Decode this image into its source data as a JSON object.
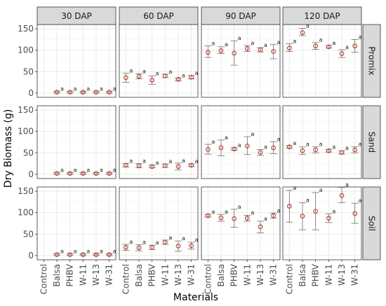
{
  "chart_data": {
    "type": "scatter",
    "xlabel": "Materials",
    "ylabel": "Dry Biomass (g)",
    "categories": [
      "Control",
      "Balsa",
      "PHBV",
      "W-11",
      "W-13",
      "W-31"
    ],
    "columns": [
      "30 DAP",
      "60 DAP",
      "90 DAP",
      "120 DAP"
    ],
    "rows": [
      "Promix",
      "Sand",
      "Soil"
    ],
    "ylim": [
      -10,
      160
    ],
    "yticks": [
      0,
      50,
      100,
      150
    ],
    "grid": true,
    "point_color": "#c0392b",
    "significance_label": "a",
    "panels": [
      {
        "row": "Promix",
        "col": "30 DAP",
        "points": [
          {
            "x": "Balsa",
            "y": 2,
            "lo": 0,
            "hi": 4
          },
          {
            "x": "PHBV",
            "y": 2,
            "lo": 0,
            "hi": 4
          },
          {
            "x": "W-11",
            "y": 2,
            "lo": 0,
            "hi": 4
          },
          {
            "x": "W-13",
            "y": 2,
            "lo": 0,
            "hi": 4
          },
          {
            "x": "W-31",
            "y": 2,
            "lo": 0,
            "hi": 4
          }
        ]
      },
      {
        "row": "Promix",
        "col": "60 DAP",
        "points": [
          {
            "x": "Control",
            "y": 36,
            "lo": 25,
            "hi": 46
          },
          {
            "x": "Balsa",
            "y": 39,
            "lo": 33,
            "hi": 45
          },
          {
            "x": "PHBV",
            "y": 30,
            "lo": 20,
            "hi": 40
          },
          {
            "x": "W-11",
            "y": 40,
            "lo": 36,
            "hi": 44
          },
          {
            "x": "W-13",
            "y": 32,
            "lo": 29,
            "hi": 35
          },
          {
            "x": "W-31",
            "y": 37,
            "lo": 33,
            "hi": 41
          }
        ]
      },
      {
        "row": "Promix",
        "col": "90 DAP",
        "points": [
          {
            "x": "Control",
            "y": 95,
            "lo": 83,
            "hi": 110
          },
          {
            "x": "Balsa",
            "y": 99,
            "lo": 92,
            "hi": 108
          },
          {
            "x": "PHBV",
            "y": 93,
            "lo": 65,
            "hi": 122
          },
          {
            "x": "W-11",
            "y": 104,
            "lo": 97,
            "hi": 111
          },
          {
            "x": "W-13",
            "y": 101,
            "lo": 96,
            "hi": 106
          },
          {
            "x": "W-31",
            "y": 97,
            "lo": 80,
            "hi": 113
          }
        ]
      },
      {
        "row": "Promix",
        "col": "120 DAP",
        "points": [
          {
            "x": "Control",
            "y": 105,
            "lo": 97,
            "hi": 115
          },
          {
            "x": "Balsa",
            "y": 141,
            "lo": 134,
            "hi": 151
          },
          {
            "x": "PHBV",
            "y": 110,
            "lo": 102,
            "hi": 118
          },
          {
            "x": "W-11",
            "y": 108,
            "lo": 105,
            "hi": 111
          },
          {
            "x": "W-13",
            "y": 92,
            "lo": 83,
            "hi": 101
          },
          {
            "x": "W-31",
            "y": 110,
            "lo": 95,
            "hi": 125
          }
        ]
      },
      {
        "row": "Sand",
        "col": "30 DAP",
        "points": [
          {
            "x": "Balsa",
            "y": 2,
            "lo": 0,
            "hi": 4
          },
          {
            "x": "PHBV",
            "y": 2,
            "lo": 0,
            "hi": 4
          },
          {
            "x": "W-11",
            "y": 2,
            "lo": 0,
            "hi": 4
          },
          {
            "x": "W-13",
            "y": 2,
            "lo": 0,
            "hi": 4
          },
          {
            "x": "W-31",
            "y": 2,
            "lo": 0,
            "hi": 4
          }
        ]
      },
      {
        "row": "Sand",
        "col": "60 DAP",
        "points": [
          {
            "x": "Control",
            "y": 21,
            "lo": 17,
            "hi": 25
          },
          {
            "x": "Balsa",
            "y": 20,
            "lo": 15,
            "hi": 25
          },
          {
            "x": "PHBV",
            "y": 18,
            "lo": 15,
            "hi": 21
          },
          {
            "x": "W-11",
            "y": 20,
            "lo": 16,
            "hi": 24
          },
          {
            "x": "W-13",
            "y": 18,
            "lo": 10,
            "hi": 26
          },
          {
            "x": "W-31",
            "y": 21,
            "lo": 18,
            "hi": 24
          }
        ]
      },
      {
        "row": "Sand",
        "col": "90 DAP",
        "points": [
          {
            "x": "Control",
            "y": 58,
            "lo": 47,
            "hi": 70
          },
          {
            "x": "Balsa",
            "y": 62,
            "lo": 43,
            "hi": 80
          },
          {
            "x": "PHBV",
            "y": 59,
            "lo": 56,
            "hi": 62
          },
          {
            "x": "W-11",
            "y": 66,
            "lo": 46,
            "hi": 88
          },
          {
            "x": "W-13",
            "y": 51,
            "lo": 44,
            "hi": 58
          },
          {
            "x": "W-31",
            "y": 62,
            "lo": 48,
            "hi": 76
          }
        ]
      },
      {
        "row": "Sand",
        "col": "120 DAP",
        "points": [
          {
            "x": "Control",
            "y": 64,
            "lo": 61,
            "hi": 67
          },
          {
            "x": "Balsa",
            "y": 55,
            "lo": 46,
            "hi": 64
          },
          {
            "x": "PHBV",
            "y": 57,
            "lo": 50,
            "hi": 64
          },
          {
            "x": "W-11",
            "y": 55,
            "lo": 52,
            "hi": 58
          },
          {
            "x": "W-13",
            "y": 51,
            "lo": 47,
            "hi": 55
          },
          {
            "x": "W-31",
            "y": 57,
            "lo": 50,
            "hi": 64
          }
        ]
      },
      {
        "row": "Soil",
        "col": "30 DAP",
        "points": [
          {
            "x": "Balsa",
            "y": 2,
            "lo": 0,
            "hi": 4
          },
          {
            "x": "PHBV",
            "y": 2,
            "lo": 0,
            "hi": 4
          },
          {
            "x": "W-11",
            "y": 2,
            "lo": 0,
            "hi": 4
          },
          {
            "x": "W-13",
            "y": 2,
            "lo": 0,
            "hi": 4
          },
          {
            "x": "W-31",
            "y": 2,
            "lo": 0,
            "hi": 4
          }
        ]
      },
      {
        "row": "Soil",
        "col": "60 DAP",
        "points": [
          {
            "x": "Control",
            "y": 19,
            "lo": 12,
            "hi": 26
          },
          {
            "x": "Balsa",
            "y": 18,
            "lo": 11,
            "hi": 25
          },
          {
            "x": "PHBV",
            "y": 19,
            "lo": 14,
            "hi": 24
          },
          {
            "x": "W-11",
            "y": 31,
            "lo": 26,
            "hi": 36
          },
          {
            "x": "W-13",
            "y": 22,
            "lo": 10,
            "hi": 34
          },
          {
            "x": "W-31",
            "y": 23,
            "lo": 15,
            "hi": 31
          }
        ]
      },
      {
        "row": "Soil",
        "col": "90 DAP",
        "points": [
          {
            "x": "Control",
            "y": 93,
            "lo": 90,
            "hi": 96
          },
          {
            "x": "Balsa",
            "y": 88,
            "lo": 80,
            "hi": 96
          },
          {
            "x": "PHBV",
            "y": 86,
            "lo": 66,
            "hi": 108
          },
          {
            "x": "W-11",
            "y": 87,
            "lo": 80,
            "hi": 94
          },
          {
            "x": "W-13",
            "y": 67,
            "lo": 53,
            "hi": 80
          },
          {
            "x": "W-31",
            "y": 93,
            "lo": 87,
            "hi": 99
          }
        ]
      },
      {
        "row": "Soil",
        "col": "120 DAP",
        "points": [
          {
            "x": "Control",
            "y": 115,
            "lo": 78,
            "hi": 152
          },
          {
            "x": "Balsa",
            "y": 92,
            "lo": 60,
            "hi": 123
          },
          {
            "x": "PHBV",
            "y": 103,
            "lo": 60,
            "hi": 147
          },
          {
            "x": "W-11",
            "y": 87,
            "lo": 77,
            "hi": 97
          },
          {
            "x": "W-13",
            "y": 140,
            "lo": 123,
            "hi": 159
          },
          {
            "x": "W-31",
            "y": 98,
            "lo": 75,
            "hi": 122
          }
        ]
      }
    ]
  }
}
